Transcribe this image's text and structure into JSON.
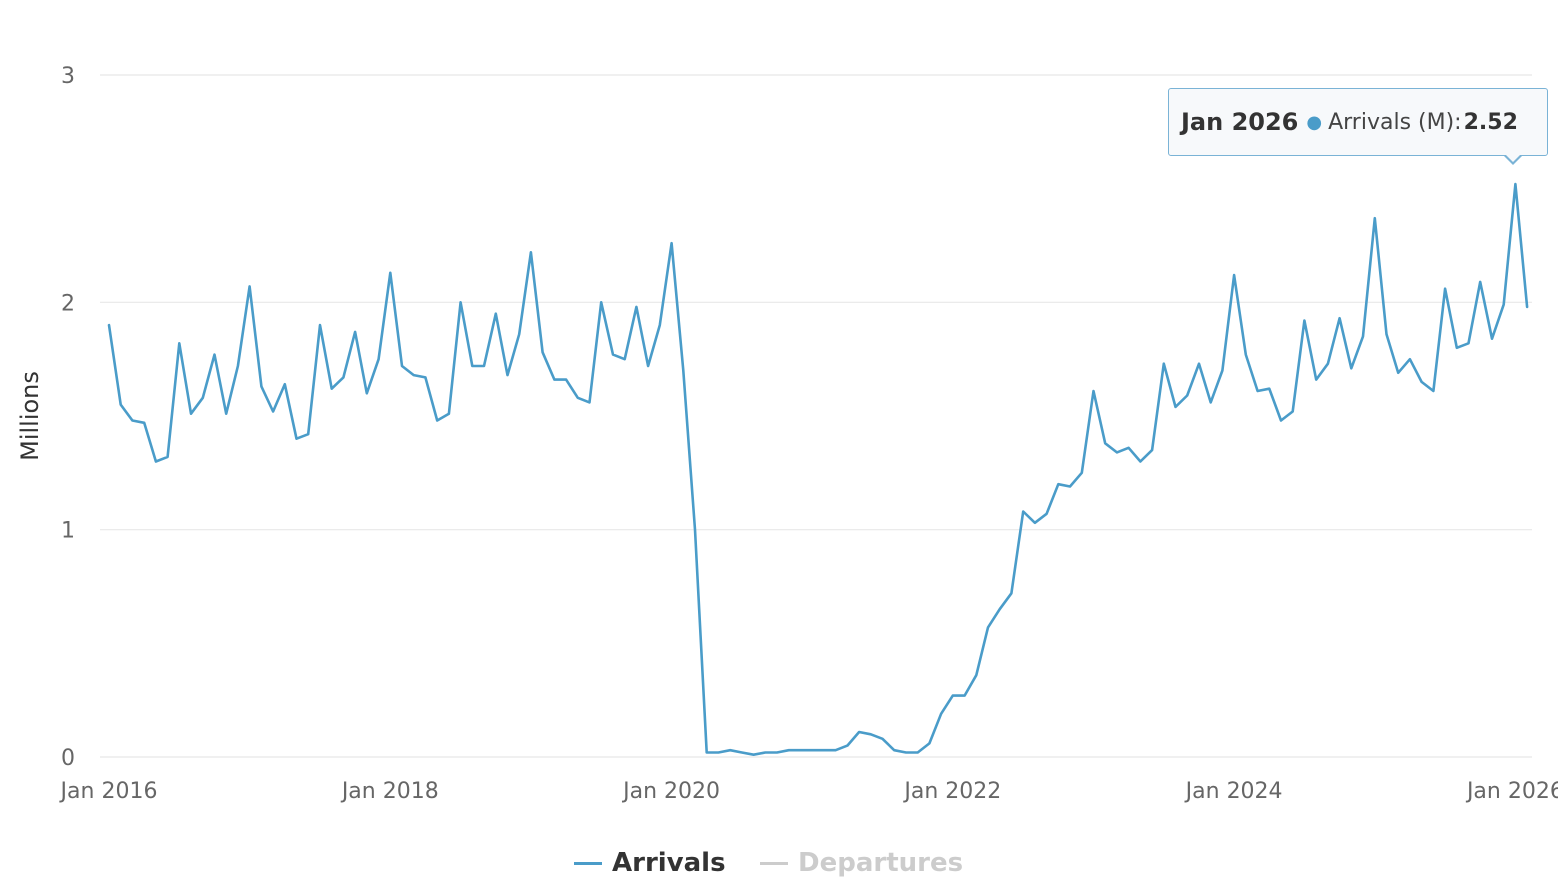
{
  "chart_data": {
    "type": "line",
    "title": "",
    "xlabel": "",
    "ylabel": "Millions",
    "ylim": [
      0,
      3
    ],
    "yticks": [
      "0",
      "1",
      "2",
      "3"
    ],
    "xticks": [
      "Jan 2016",
      "Jan 2018",
      "Jan 2020",
      "Jan 2022",
      "Jan 2024",
      "Jan 2026"
    ],
    "x_start": "Jan 2016",
    "x_end": "Feb 2026",
    "grid": true,
    "legend_position": "bottom",
    "series": [
      {
        "name": "Arrivals",
        "color": "#4a9cc9",
        "visible": true,
        "values": [
          1.9,
          1.55,
          1.48,
          1.47,
          1.3,
          1.32,
          1.82,
          1.51,
          1.58,
          1.77,
          1.51,
          1.72,
          2.07,
          1.63,
          1.52,
          1.64,
          1.4,
          1.42,
          1.9,
          1.62,
          1.67,
          1.87,
          1.6,
          1.75,
          2.13,
          1.72,
          1.68,
          1.67,
          1.48,
          1.51,
          2.0,
          1.72,
          1.72,
          1.95,
          1.68,
          1.86,
          2.22,
          1.78,
          1.66,
          1.66,
          1.58,
          1.56,
          2.0,
          1.77,
          1.75,
          1.98,
          1.72,
          1.9,
          2.26,
          1.7,
          1.0,
          0.02,
          0.02,
          0.03,
          0.02,
          0.01,
          0.02,
          0.02,
          0.03,
          0.03,
          0.03,
          0.03,
          0.03,
          0.05,
          0.11,
          0.1,
          0.08,
          0.03,
          0.02,
          0.02,
          0.06,
          0.19,
          0.27,
          0.27,
          0.36,
          0.57,
          0.65,
          0.72,
          1.08,
          1.03,
          1.07,
          1.2,
          1.19,
          1.25,
          1.61,
          1.38,
          1.34,
          1.36,
          1.3,
          1.35,
          1.73,
          1.54,
          1.59,
          1.73,
          1.56,
          1.7,
          2.12,
          1.77,
          1.61,
          1.62,
          1.48,
          1.52,
          1.92,
          1.66,
          1.73,
          1.93,
          1.71,
          1.85,
          2.37,
          1.86,
          1.69,
          1.75,
          1.65,
          1.61,
          2.06,
          1.8,
          1.82,
          2.09,
          1.84,
          1.99,
          2.52,
          1.98
        ]
      },
      {
        "name": "Departures",
        "color": "#cccccc",
        "visible": false,
        "values": []
      }
    ]
  },
  "tooltip": {
    "date": "Jan 2026",
    "series_label": "Arrivals (M):",
    "value": "2.52"
  },
  "legend": {
    "items": [
      {
        "label": "Arrivals",
        "color": "#4a9cc9",
        "text_color": "#333333"
      },
      {
        "label": "Departures",
        "color": "#cccccc",
        "text_color": "#cccccc"
      }
    ]
  }
}
